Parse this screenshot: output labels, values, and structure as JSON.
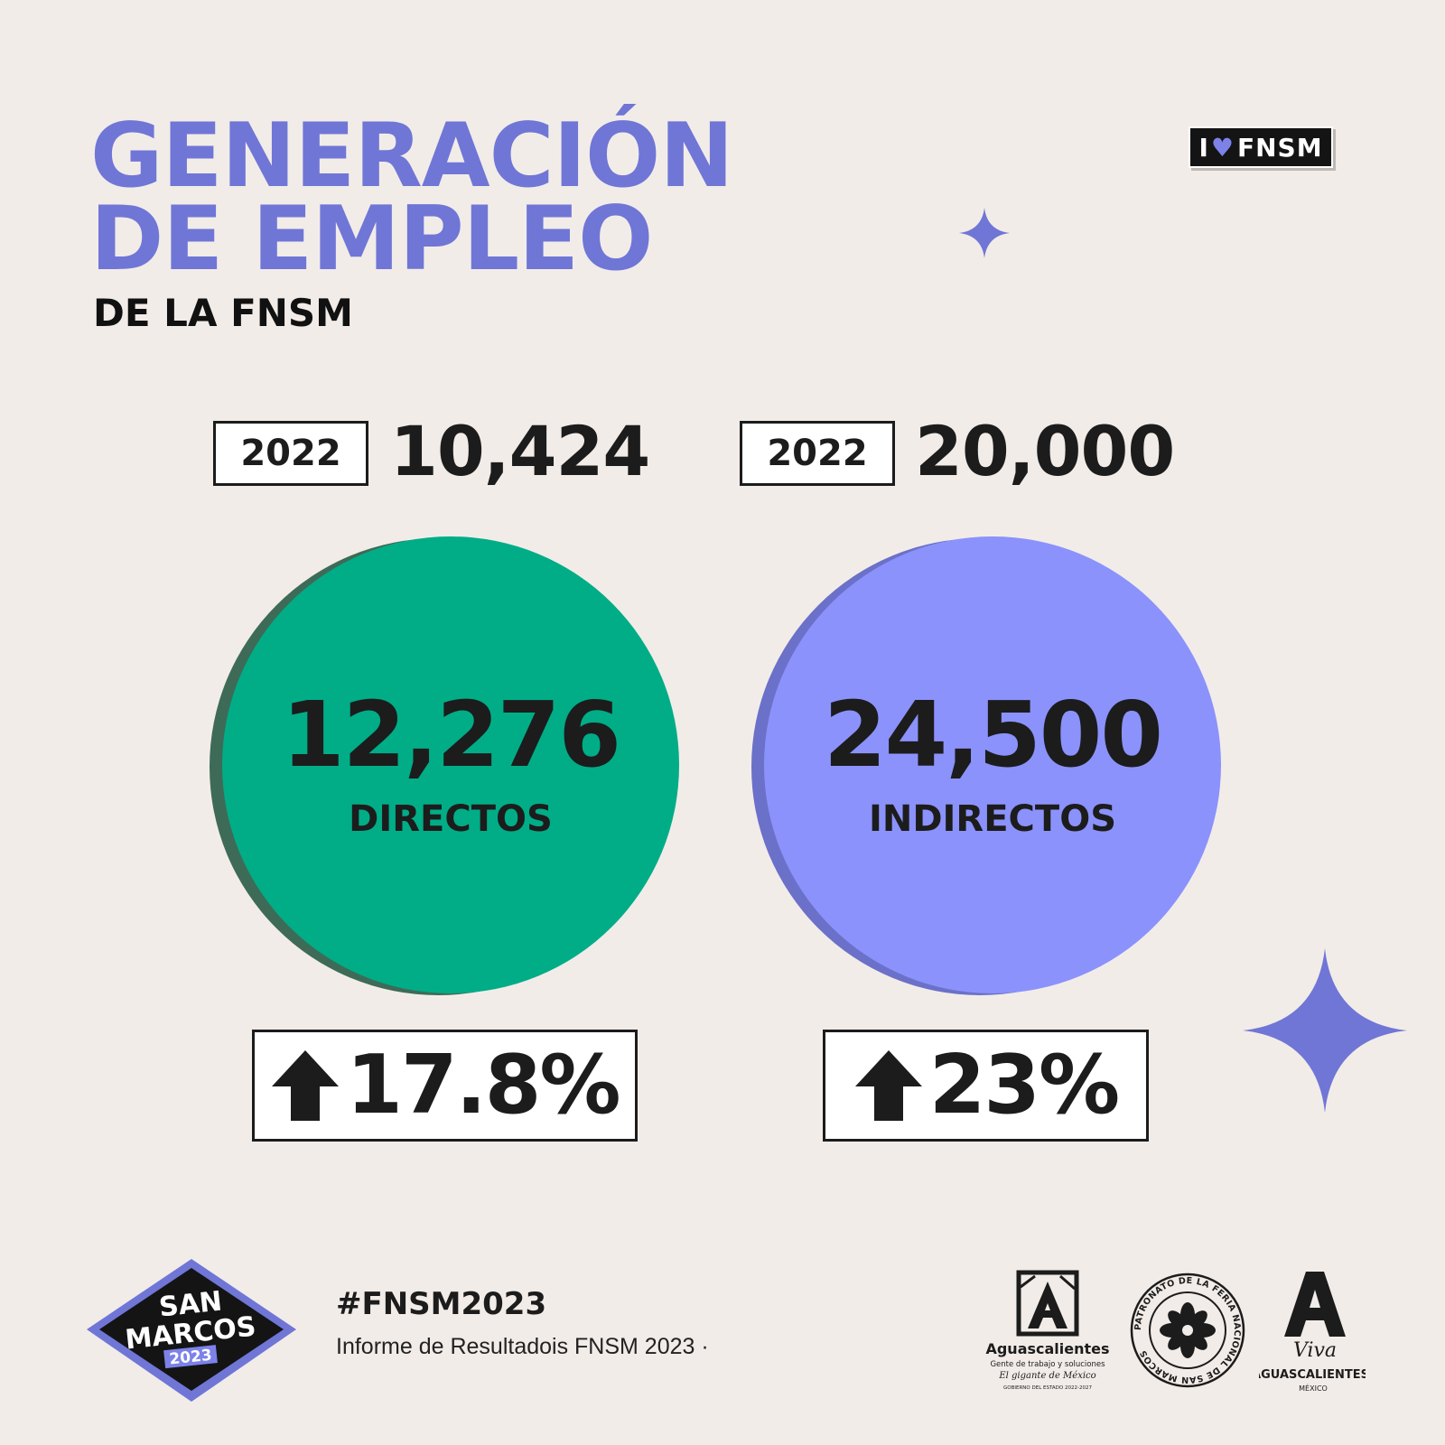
{
  "header": {
    "title_line1": "GENERACIÓN",
    "title_line2": "DE EMPLEO",
    "subtitle": "DE LA FNSM",
    "badge": {
      "prefix": "I",
      "heart": "♥",
      "suffix": "FNSM"
    }
  },
  "stats": [
    {
      "year": "2022",
      "previous_value": "10,424",
      "value": "12,276",
      "label": "DIRECTOS",
      "change": "17.8%",
      "change_icon": "arrow-up-icon",
      "color": "#00ad87",
      "shadow_color": "#3d6b57"
    },
    {
      "year": "2022",
      "previous_value": "20,000",
      "value": "24,500",
      "label": "INDIRECTOS",
      "change": "23%",
      "change_icon": "arrow-up-icon",
      "color": "#8b92fb",
      "shadow_color": "#6b70c9"
    }
  ],
  "footer": {
    "logo_text_line1": "SAN",
    "logo_text_line2": "MARCOS",
    "logo_year": "2023",
    "hashtag": "#FNSM2023",
    "report": "Informe de Resultadois FNSM 2023 ·",
    "partner_logos": {
      "gov_name": "Aguascalientes",
      "gov_tagline": "Gente de trabajo y soluciones",
      "gov_slogan": "El gigante de México",
      "gov_period": "GOBIERNO DEL ESTADO 2022-2027",
      "seal_text": "PATRONATO DE LA FERIA NACIONAL DE SAN MARCOS",
      "viva_line1": "Viva",
      "viva_line2": "AGUASCALIENTES!",
      "viva_line3": "MÉXICO"
    }
  },
  "colors": {
    "background": "#f2ece8",
    "accent": "#7076d6",
    "text": "#1c1c1c"
  }
}
